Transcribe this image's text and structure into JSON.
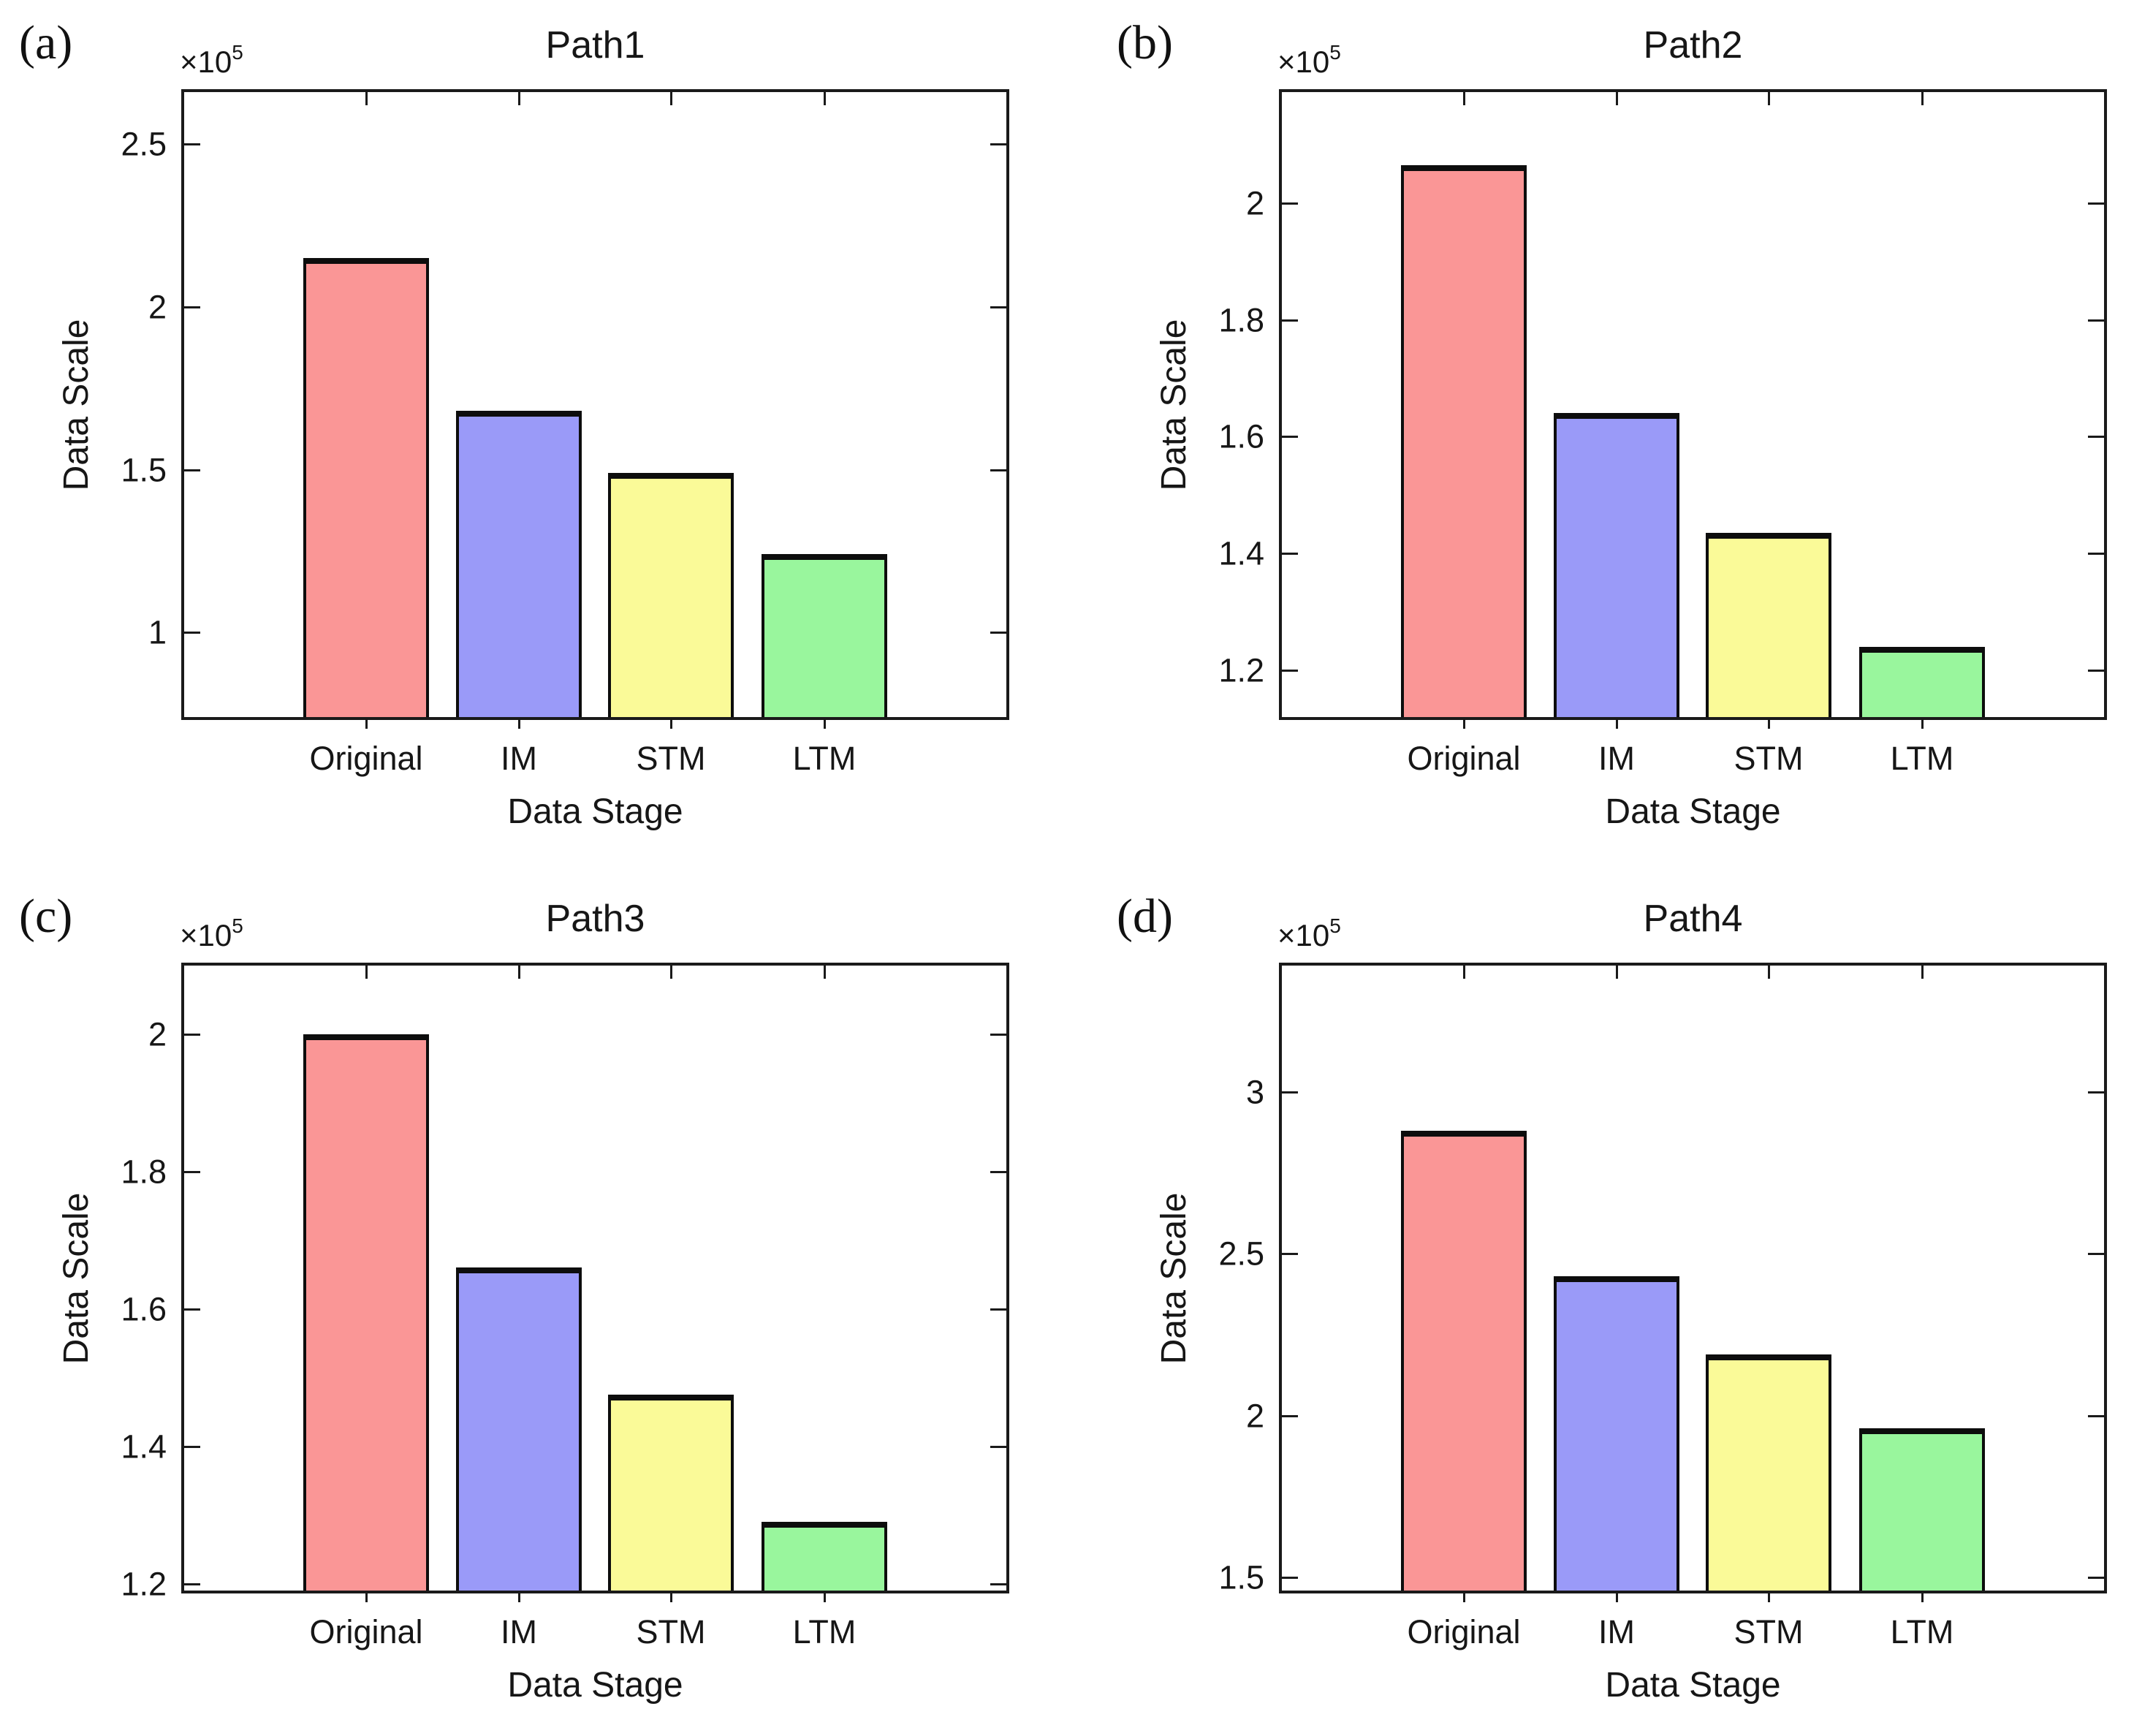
{
  "figure": {
    "background": "#ffffff",
    "text_color": "#1a1a1a",
    "bar_edge_color": "#0d0d0d",
    "bar_palette": [
      "#FA9696",
      "#9A9AF8",
      "#FAFA98",
      "#99F69D"
    ]
  },
  "chart_data": [
    {
      "type": "bar",
      "panel_letter": "(a)",
      "title": "Path1",
      "xlabel": "Data Stage",
      "ylabel": "Data Scale",
      "offset_text": "×10",
      "offset_exponent": "5",
      "categories": [
        "Original",
        "IM",
        "STM",
        "LTM"
      ],
      "values": [
        215000,
        168000,
        149000,
        124000
      ],
      "ylim": [
        74000,
        266000
      ],
      "ytick_values": [
        100000,
        150000,
        200000,
        250000
      ],
      "ytick_labels": [
        "1",
        "1.5",
        "2",
        "2.5"
      ],
      "grid": false,
      "legend": null
    },
    {
      "type": "bar",
      "panel_letter": "(b)",
      "title": "Path2",
      "xlabel": "Data Stage",
      "ylabel": "Data Scale",
      "offset_text": "×10",
      "offset_exponent": "5",
      "categories": [
        "Original",
        "IM",
        "STM",
        "LTM"
      ],
      "values": [
        206500,
        164000,
        143500,
        124000
      ],
      "ylim": [
        112000,
        219000
      ],
      "ytick_values": [
        120000,
        140000,
        160000,
        180000,
        200000
      ],
      "ytick_labels": [
        "1.2",
        "1.4",
        "1.6",
        "1.8",
        "2"
      ],
      "grid": false,
      "legend": null
    },
    {
      "type": "bar",
      "panel_letter": "(c)",
      "title": "Path3",
      "xlabel": "Data Stage",
      "ylabel": "Data Scale",
      "offset_text": "×10",
      "offset_exponent": "5",
      "categories": [
        "Original",
        "IM",
        "STM",
        "LTM"
      ],
      "values": [
        200000,
        166000,
        147500,
        129000
      ],
      "ylim": [
        119000,
        210000
      ],
      "ytick_values": [
        120000,
        140000,
        160000,
        180000,
        200000
      ],
      "ytick_labels": [
        "1.2",
        "1.4",
        "1.6",
        "1.8",
        "2"
      ],
      "grid": false,
      "legend": null
    },
    {
      "type": "bar",
      "panel_letter": "(d)",
      "title": "Path4",
      "xlabel": "Data Stage",
      "ylabel": "Data Scale",
      "offset_text": "×10",
      "offset_exponent": "5",
      "categories": [
        "Original",
        "IM",
        "STM",
        "LTM"
      ],
      "values": [
        288000,
        243000,
        219000,
        196000
      ],
      "ylim": [
        146000,
        339000
      ],
      "ytick_values": [
        150000,
        200000,
        250000,
        300000
      ],
      "ytick_labels": [
        "1.5",
        "2",
        "2.5",
        "3"
      ],
      "grid": false,
      "legend": null
    }
  ]
}
